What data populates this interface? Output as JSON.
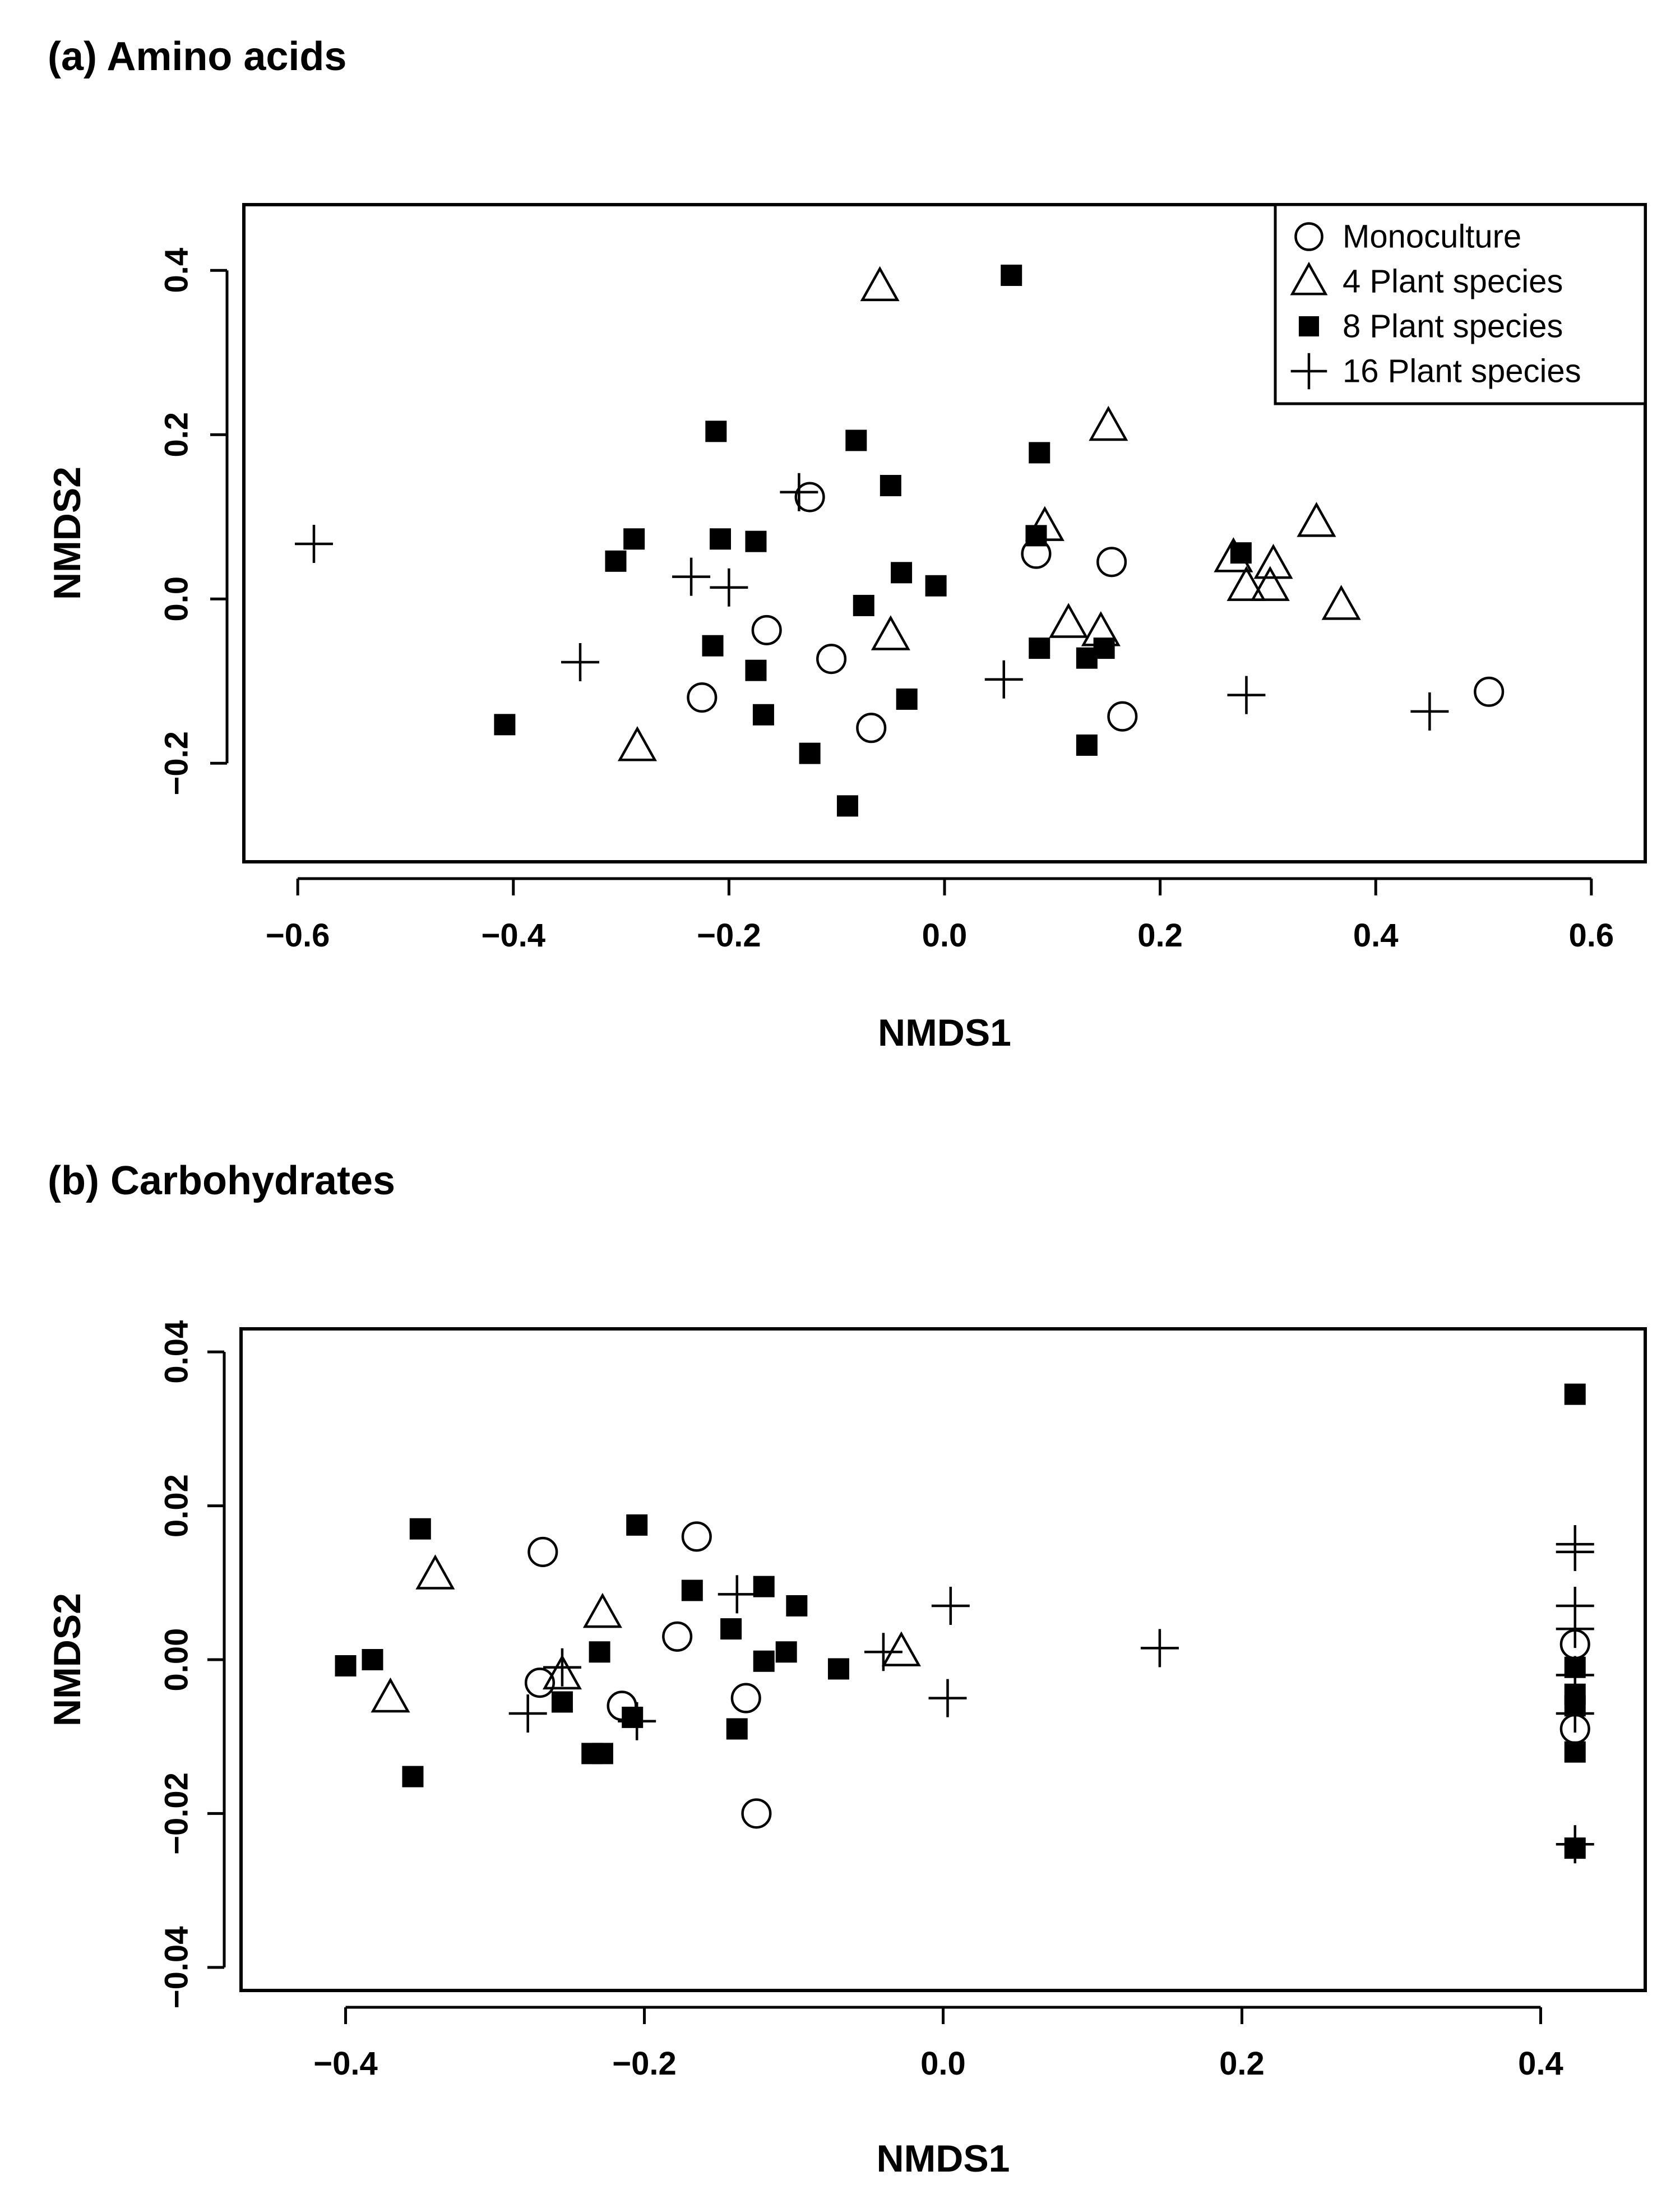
{
  "chart_data": [
    {
      "type": "scatter",
      "title": "(a) Amino acids",
      "xlabel": "NMDS1",
      "ylabel": "NMDS2",
      "xlim": [
        -0.65,
        0.65
      ],
      "ylim": [
        -0.32,
        0.48
      ],
      "xticks": [
        -0.6,
        -0.4,
        -0.2,
        0.0,
        0.2,
        0.4,
        0.6
      ],
      "xtick_labels": [
        "−0.6",
        "−0.4",
        "−0.2",
        "0.0",
        "0.2",
        "0.4",
        "0.6"
      ],
      "yticks": [
        -0.2,
        0.0,
        0.2,
        0.4
      ],
      "ytick_labels": [
        "−0.2",
        "0.0",
        "0.2",
        "0.4"
      ],
      "legend": {
        "placement": "top-right",
        "entries": [
          {
            "marker": "circle",
            "label": "Monoculture"
          },
          {
            "marker": "triangle",
            "label": "4   Plant species"
          },
          {
            "marker": "square",
            "label": "8   Plant species"
          },
          {
            "marker": "plus",
            "label": "16 Plant species"
          }
        ]
      },
      "series": [
        {
          "marker": "circle",
          "points": [
            [
              -0.125,
              0.124
            ],
            [
              0.085,
              0.055
            ],
            [
              0.155,
              0.045
            ],
            [
              -0.165,
              -0.038
            ],
            [
              -0.105,
              -0.073
            ],
            [
              -0.225,
              -0.12
            ],
            [
              -0.068,
              -0.157
            ],
            [
              0.165,
              -0.143
            ],
            [
              0.505,
              -0.113
            ]
          ]
        },
        {
          "marker": "triangle",
          "points": [
            [
              -0.06,
              0.38
            ],
            [
              0.152,
              0.21
            ],
            [
              0.093,
              0.088
            ],
            [
              0.345,
              0.093
            ],
            [
              0.268,
              0.05
            ],
            [
              0.305,
              0.042
            ],
            [
              0.28,
              0.015
            ],
            [
              0.302,
              0.015
            ],
            [
              0.368,
              -0.008
            ],
            [
              0.115,
              -0.03
            ],
            [
              0.145,
              -0.04
            ],
            [
              -0.05,
              -0.045
            ],
            [
              -0.285,
              -0.18
            ]
          ]
        },
        {
          "marker": "square",
          "points": [
            [
              0.062,
              0.394
            ],
            [
              -0.212,
              0.204
            ],
            [
              -0.082,
              0.193
            ],
            [
              0.088,
              0.178
            ],
            [
              -0.05,
              0.138
            ],
            [
              0.085,
              0.077
            ],
            [
              -0.288,
              0.073
            ],
            [
              -0.208,
              0.073
            ],
            [
              -0.175,
              0.07
            ],
            [
              0.275,
              0.056
            ],
            [
              -0.305,
              0.046
            ],
            [
              -0.04,
              0.032
            ],
            [
              -0.008,
              0.016
            ],
            [
              -0.075,
              -0.008
            ],
            [
              -0.215,
              -0.057
            ],
            [
              0.088,
              -0.06
            ],
            [
              0.148,
              -0.06
            ],
            [
              0.132,
              -0.072
            ],
            [
              -0.175,
              -0.087
            ],
            [
              -0.035,
              -0.122
            ],
            [
              -0.168,
              -0.141
            ],
            [
              -0.125,
              -0.188
            ],
            [
              0.132,
              -0.178
            ],
            [
              -0.09,
              -0.252
            ],
            [
              -0.408,
              -0.153
            ]
          ]
        },
        {
          "marker": "plus",
          "points": [
            [
              -0.585,
              0.067
            ],
            [
              -0.135,
              0.13
            ],
            [
              -0.235,
              0.027
            ],
            [
              -0.2,
              0.014
            ],
            [
              -0.338,
              -0.077
            ],
            [
              0.055,
              -0.098
            ],
            [
              0.28,
              -0.117
            ],
            [
              0.45,
              -0.137
            ]
          ]
        }
      ]
    },
    {
      "type": "scatter",
      "title": "(b) Carbohydrates",
      "xlabel": "NMDS1",
      "ylabel": "NMDS2",
      "xlim": [
        -0.47,
        0.47
      ],
      "ylim": [
        -0.043,
        0.043
      ],
      "xticks": [
        -0.4,
        -0.2,
        0.0,
        0.2,
        0.4
      ],
      "xtick_labels": [
        "−0.4",
        "−0.2",
        "0.0",
        "0.2",
        "0.4"
      ],
      "yticks": [
        -0.04,
        -0.02,
        0.0,
        0.02,
        0.04
      ],
      "ytick_labels": [
        "−0.04",
        "−0.02",
        "0.00",
        "0.02",
        "0.04"
      ],
      "series": [
        {
          "marker": "circle",
          "points": [
            [
              -0.268,
              0.014
            ],
            [
              -0.165,
              0.016
            ],
            [
              -0.178,
              0.003
            ],
            [
              -0.27,
              -0.003
            ],
            [
              -0.215,
              -0.006
            ],
            [
              -0.132,
              -0.005
            ],
            [
              -0.125,
              -0.02
            ],
            [
              0.423,
              0.002
            ],
            [
              0.423,
              -0.009
            ]
          ]
        },
        {
          "marker": "triangle",
          "points": [
            [
              -0.34,
              0.011
            ],
            [
              -0.228,
              0.006
            ],
            [
              -0.255,
              -0.002
            ],
            [
              -0.37,
              -0.005
            ],
            [
              -0.028,
              0.001
            ]
          ]
        },
        {
          "marker": "square",
          "points": [
            [
              -0.35,
              0.017
            ],
            [
              -0.205,
              0.0175
            ],
            [
              -0.168,
              0.009
            ],
            [
              -0.12,
              0.0095
            ],
            [
              -0.098,
              0.007
            ],
            [
              -0.142,
              0.004
            ],
            [
              -0.23,
              0.001
            ],
            [
              -0.105,
              0.001
            ],
            [
              -0.12,
              -0.0002
            ],
            [
              -0.07,
              -0.0012
            ],
            [
              -0.382,
              0.0
            ],
            [
              -0.4,
              -0.0008
            ],
            [
              -0.255,
              -0.0055
            ],
            [
              -0.208,
              -0.0075
            ],
            [
              -0.228,
              -0.0122
            ],
            [
              -0.235,
              -0.0122
            ],
            [
              -0.138,
              -0.009
            ],
            [
              -0.355,
              -0.0152
            ],
            [
              0.423,
              0.0345
            ],
            [
              0.423,
              -0.001
            ],
            [
              0.423,
              -0.0045
            ],
            [
              0.423,
              -0.006
            ],
            [
              0.423,
              -0.012
            ],
            [
              0.423,
              -0.0245
            ]
          ]
        },
        {
          "marker": "plus",
          "points": [
            [
              -0.138,
              0.0085
            ],
            [
              -0.255,
              -0.001
            ],
            [
              -0.278,
              -0.007
            ],
            [
              -0.205,
              -0.008
            ],
            [
              -0.04,
              0.001
            ],
            [
              0.005,
              0.007
            ],
            [
              0.003,
              -0.005
            ],
            [
              0.145,
              0.0015
            ],
            [
              0.423,
              0.015
            ],
            [
              0.423,
              0.014
            ],
            [
              0.423,
              0.007
            ],
            [
              0.423,
              0.004
            ],
            [
              0.423,
              -0.002
            ],
            [
              0.423,
              -0.007
            ],
            [
              0.423,
              -0.024
            ]
          ]
        }
      ]
    }
  ]
}
